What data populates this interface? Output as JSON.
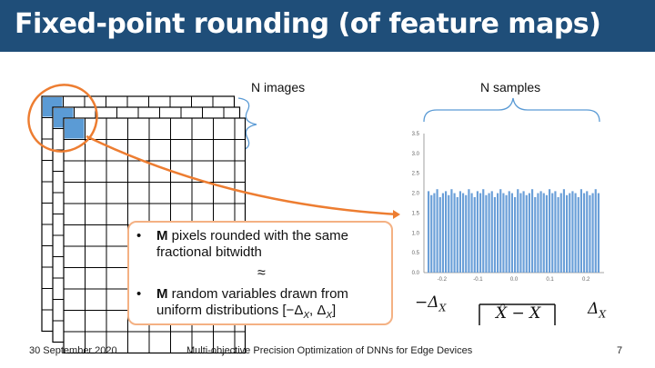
{
  "slide": {
    "title": "Fixed-point rounding (of feature maps)",
    "label_images": "N images",
    "label_samples": "N samples",
    "bullet_1_bold": "M",
    "bullet_1_text": " pixels rounded with the same fractional bitwidth",
    "approx": "≈",
    "bullet_2_bold": "M",
    "bullet_2_text": " random variables drawn from uniform distributions [−Δ",
    "bullet_2_sub": "X",
    "bullet_2_mid": ", Δ",
    "bullet_2_sub2": "X",
    "bullet_2_end": "]",
    "axis_left_label": "−Δ",
    "axis_left_sub": "X",
    "axis_right_label": "Δ",
    "axis_right_sub": "X",
    "box_label": "X̂ − X",
    "footer_date": "30 September 2020",
    "footer_title": "Multi-objective Precision Optimization of DNNs for Edge Devices",
    "footer_page": "7"
  },
  "colors": {
    "title_bar": "#1f4e79",
    "highlight_cell": "#5b9bd5",
    "ellipse": "#ed7d31",
    "histogram_bar": "#6a9fd8",
    "callout_border": "#f4b183"
  },
  "chart_data": {
    "type": "bar",
    "title": "",
    "xlabel": "",
    "ylabel": "",
    "xlim": [
      -0.25,
      0.25
    ],
    "ylim": [
      0,
      3.5
    ],
    "x_ticks": [
      "-0.2",
      "-0.1",
      "0.0",
      "0.1",
      "0.2"
    ],
    "y_ticks": [
      "0.0",
      "0.5",
      "1.0",
      "1.5",
      "2.0",
      "2.5",
      "3.0",
      "3.5"
    ],
    "values": [
      2.05,
      1.95,
      2.0,
      2.1,
      1.9,
      2.0,
      2.05,
      1.95,
      2.1,
      2.0,
      1.9,
      2.05,
      2.0,
      1.95,
      2.1,
      2.0,
      1.9,
      2.05,
      2.0,
      2.1,
      1.95,
      2.0,
      2.05,
      1.9,
      2.0,
      2.1,
      2.0,
      1.95,
      2.05,
      2.0,
      1.9,
      2.1,
      2.0,
      2.05,
      1.95,
      2.0,
      2.1,
      1.9,
      2.0,
      2.05,
      2.0,
      1.95,
      2.1,
      2.0,
      2.05,
      1.9,
      2.0,
      2.1,
      1.95,
      2.0,
      2.05,
      2.0,
      1.9,
      2.1,
      2.0,
      2.05,
      1.95,
      2.0,
      2.1,
      2.0
    ]
  }
}
